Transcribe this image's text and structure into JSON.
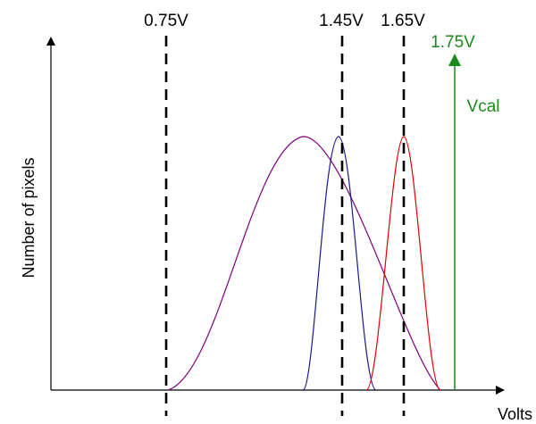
{
  "axes": {
    "y_label": "Number of pixels",
    "x_label": "Volts"
  },
  "thresholds": [
    {
      "label": "0.75V",
      "volts": 0.75
    },
    {
      "label": "1.45V",
      "volts": 1.45
    },
    {
      "label": "1.65V",
      "volts": 1.65
    }
  ],
  "vcal": {
    "volts_label": "1.75V",
    "volts": 1.75,
    "name": "Vcal",
    "color": "#1a8a1a"
  },
  "distributions": [
    {
      "id": "purple",
      "color": "#800080"
    },
    {
      "id": "blue",
      "color": "#1a1a8a"
    },
    {
      "id": "red",
      "color": "#e00000"
    }
  ]
}
